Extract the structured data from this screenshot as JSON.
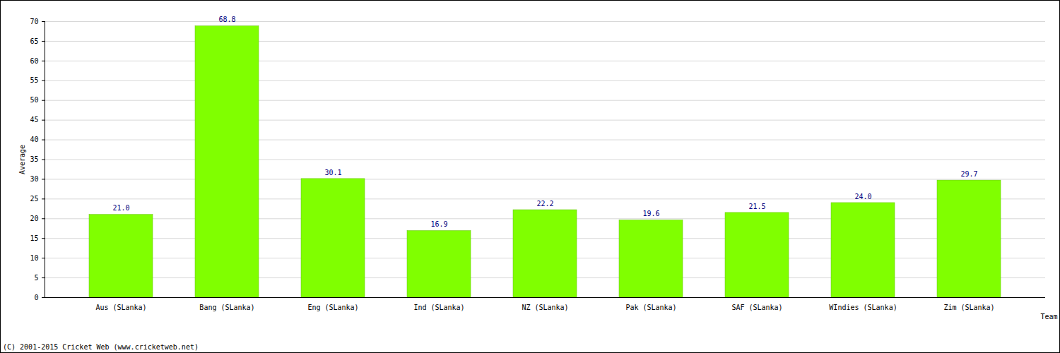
{
  "chart_data": {
    "type": "bar",
    "categories": [
      "Aus (SLanka)",
      "Bang (SLanka)",
      "Eng (SLanka)",
      "Ind (SLanka)",
      "NZ (SLanka)",
      "Pak (SLanka)",
      "SAF (SLanka)",
      "WIndies (SLanka)",
      "Zim (SLanka)"
    ],
    "values": [
      21.0,
      68.8,
      30.1,
      16.9,
      22.2,
      19.6,
      21.5,
      24.0,
      29.7
    ],
    "value_labels": [
      "21.0",
      "68.8",
      "30.1",
      "16.9",
      "22.2",
      "19.6",
      "21.5",
      "24.0",
      "29.7"
    ],
    "color": "#80ff00",
    "x_label": "Team",
    "y_label": "Average",
    "caption": "(C) 2001-2015 Cricket Web (www.cricketweb.net)",
    "ylim": [
      0,
      70
    ],
    "yticks": [
      0,
      5,
      10,
      15,
      20,
      25,
      30,
      35,
      40,
      45,
      50,
      55,
      60,
      65,
      70
    ],
    "grid": true,
    "data_labels": true
  }
}
